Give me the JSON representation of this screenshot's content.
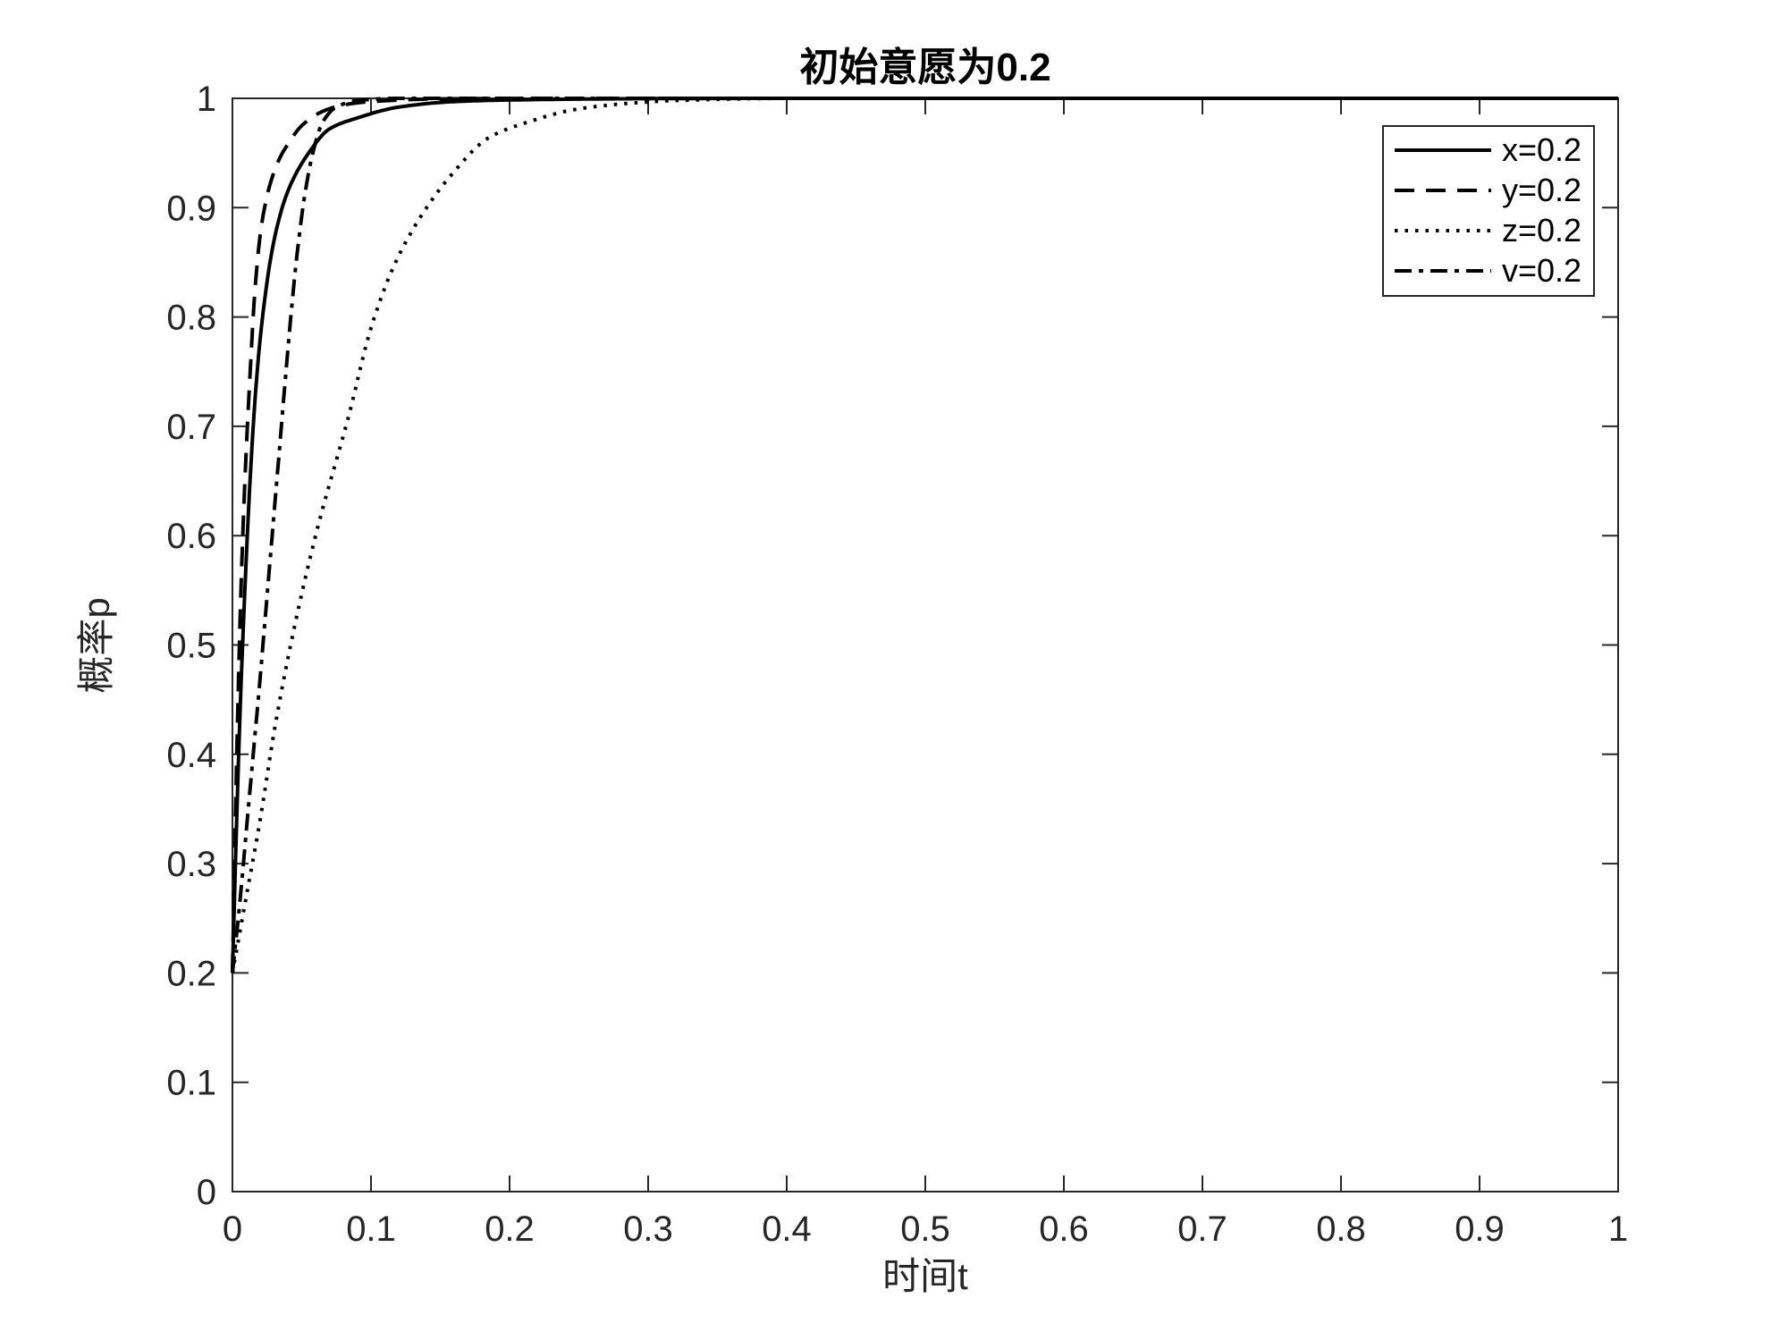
{
  "figure": {
    "background_color": "#ffffff",
    "axis_color": "#262626",
    "curve_color": "#000000"
  },
  "chart_data": {
    "type": "line",
    "title": "初始意愿为0.2",
    "xlabel": "时间t",
    "ylabel": "概率p",
    "xlim": [
      0,
      1
    ],
    "ylim": [
      0,
      1
    ],
    "grid": false,
    "box": true,
    "initial_value": 0.2,
    "x_tick_values": [
      0,
      0.1,
      0.2,
      0.3,
      0.4,
      0.5,
      0.6,
      0.7,
      0.8,
      0.9,
      1
    ],
    "x_tick_labels": [
      "0",
      "0.1",
      "0.2",
      "0.3",
      "0.4",
      "0.5",
      "0.6",
      "0.7",
      "0.8",
      "0.9",
      "1"
    ],
    "y_tick_values": [
      0,
      0.1,
      0.2,
      0.3,
      0.4,
      0.5,
      0.6,
      0.7,
      0.8,
      0.9,
      1
    ],
    "y_tick_labels": [
      "0",
      "0.1",
      "0.2",
      "0.3",
      "0.4",
      "0.5",
      "0.6",
      "0.7",
      "0.8",
      "0.9",
      "1"
    ],
    "legend": {
      "position": "top-right",
      "border": true,
      "entries": [
        "x=0.2",
        "y=0.2",
        "z=0.2",
        "v=0.2"
      ]
    },
    "series": [
      {
        "name": "x=0.2",
        "line_style": "solid",
        "color": "#000000",
        "x": [
          0,
          0.005,
          0.01,
          0.015,
          0.02,
          0.03,
          0.04,
          0.055,
          0.07,
          0.09,
          0.12,
          0.16,
          0.2,
          0.3,
          0.4,
          0.6,
          1.0
        ],
        "y": [
          0.2,
          0.42,
          0.58,
          0.7,
          0.78,
          0.87,
          0.915,
          0.95,
          0.972,
          0.982,
          0.992,
          0.997,
          0.9985,
          0.9997,
          1.0,
          1.0,
          1.0
        ]
      },
      {
        "name": "y=0.2",
        "line_style": "dashed",
        "color": "#000000",
        "x": [
          0,
          0.004,
          0.008,
          0.012,
          0.016,
          0.02,
          0.024,
          0.028,
          0.034,
          0.04,
          0.05,
          0.065,
          0.08,
          0.1,
          0.15,
          0.25,
          0.5,
          1.0
        ],
        "y": [
          0.2,
          0.45,
          0.62,
          0.73,
          0.82,
          0.875,
          0.905,
          0.925,
          0.945,
          0.958,
          0.975,
          0.988,
          0.994,
          0.997,
          0.9995,
          1.0,
          1.0,
          1.0
        ]
      },
      {
        "name": "z=0.2",
        "line_style": "dotted",
        "color": "#000000",
        "x": [
          0,
          0.01,
          0.02,
          0.03,
          0.042,
          0.06,
          0.084,
          0.1,
          0.117,
          0.137,
          0.158,
          0.185,
          0.215,
          0.248,
          0.282,
          0.32,
          0.4,
          1.0
        ],
        "y": [
          0.2,
          0.27,
          0.34,
          0.42,
          0.5,
          0.6,
          0.71,
          0.79,
          0.848,
          0.894,
          0.93,
          0.964,
          0.979,
          0.99,
          0.995,
          0.998,
          1.0,
          1.0
        ]
      },
      {
        "name": "v=0.2",
        "line_style": "dashdot",
        "color": "#000000",
        "x": [
          0,
          0.005,
          0.01,
          0.015,
          0.02,
          0.024,
          0.028,
          0.034,
          0.04,
          0.046,
          0.052,
          0.058,
          0.065,
          0.075,
          0.09,
          0.12,
          0.3,
          1.0
        ],
        "y": [
          0.2,
          0.26,
          0.33,
          0.4,
          0.47,
          0.53,
          0.59,
          0.68,
          0.77,
          0.85,
          0.91,
          0.95,
          0.978,
          0.992,
          0.998,
          1.0,
          1.0,
          1.0
        ]
      }
    ]
  }
}
